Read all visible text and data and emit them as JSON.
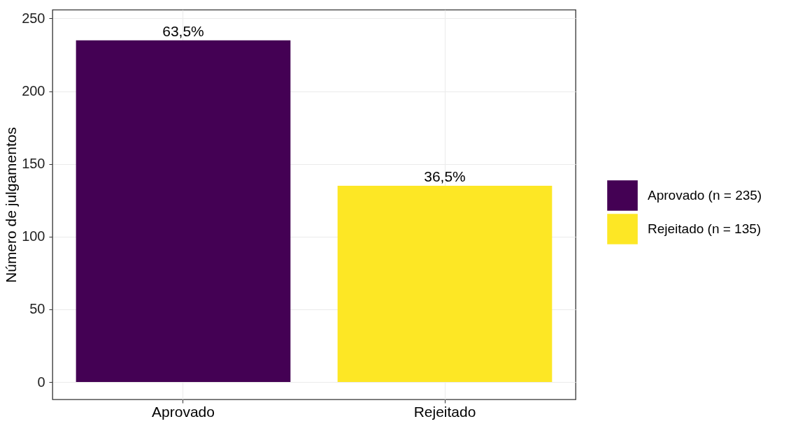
{
  "chart_data": {
    "type": "bar",
    "ylabel": "Número de julgamentos",
    "categories": [
      "Aprovado",
      "Rejeitado"
    ],
    "series": [
      {
        "name": "Aprovado (n = 235)",
        "color": "#440154",
        "values": [
          235,
          null
        ]
      },
      {
        "name": "Rejeitado (n = 135)",
        "color": "#fde725",
        "values": [
          null,
          135
        ]
      }
    ],
    "annotations": [
      {
        "text": "63,5%",
        "x": "Aprovado",
        "y": 235
      },
      {
        "text": "36,5%",
        "x": "Rejeitado",
        "y": 135
      }
    ],
    "ylim": [
      -12,
      256
    ],
    "yticks": [
      0,
      50,
      100,
      150,
      200,
      250
    ],
    "grid": true,
    "legend": "right"
  }
}
